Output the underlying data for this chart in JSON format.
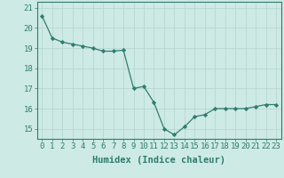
{
  "xlabel": "Humidex (Indice chaleur)",
  "ylabel": "",
  "x_values": [
    0,
    1,
    2,
    3,
    4,
    5,
    6,
    7,
    8,
    9,
    10,
    11,
    12,
    13,
    14,
    15,
    16,
    17,
    18,
    19,
    20,
    21,
    22,
    23
  ],
  "y_values": [
    20.6,
    19.5,
    19.3,
    19.2,
    19.1,
    19.0,
    18.85,
    18.85,
    18.9,
    17.0,
    17.1,
    16.3,
    15.0,
    14.7,
    15.1,
    15.6,
    15.7,
    16.0,
    16.0,
    16.0,
    16.0,
    16.1,
    16.2,
    16.2
  ],
  "ylim": [
    14.5,
    21.3
  ],
  "yticks": [
    15,
    16,
    17,
    18,
    19,
    20,
    21
  ],
  "xticks": [
    0,
    1,
    2,
    3,
    4,
    5,
    6,
    7,
    8,
    9,
    10,
    11,
    12,
    13,
    14,
    15,
    16,
    17,
    18,
    19,
    20,
    21,
    22,
    23
  ],
  "line_color": "#2e7d6e",
  "marker_color": "#2e7d6e",
  "bg_color": "#ceeae4",
  "grid_color": "#b8d8d2",
  "axis_color": "#2e7d6e",
  "tick_color": "#2e7d6e",
  "font_color": "#2e7d6e",
  "font_size": 6.5,
  "xlabel_fontsize": 7.5
}
